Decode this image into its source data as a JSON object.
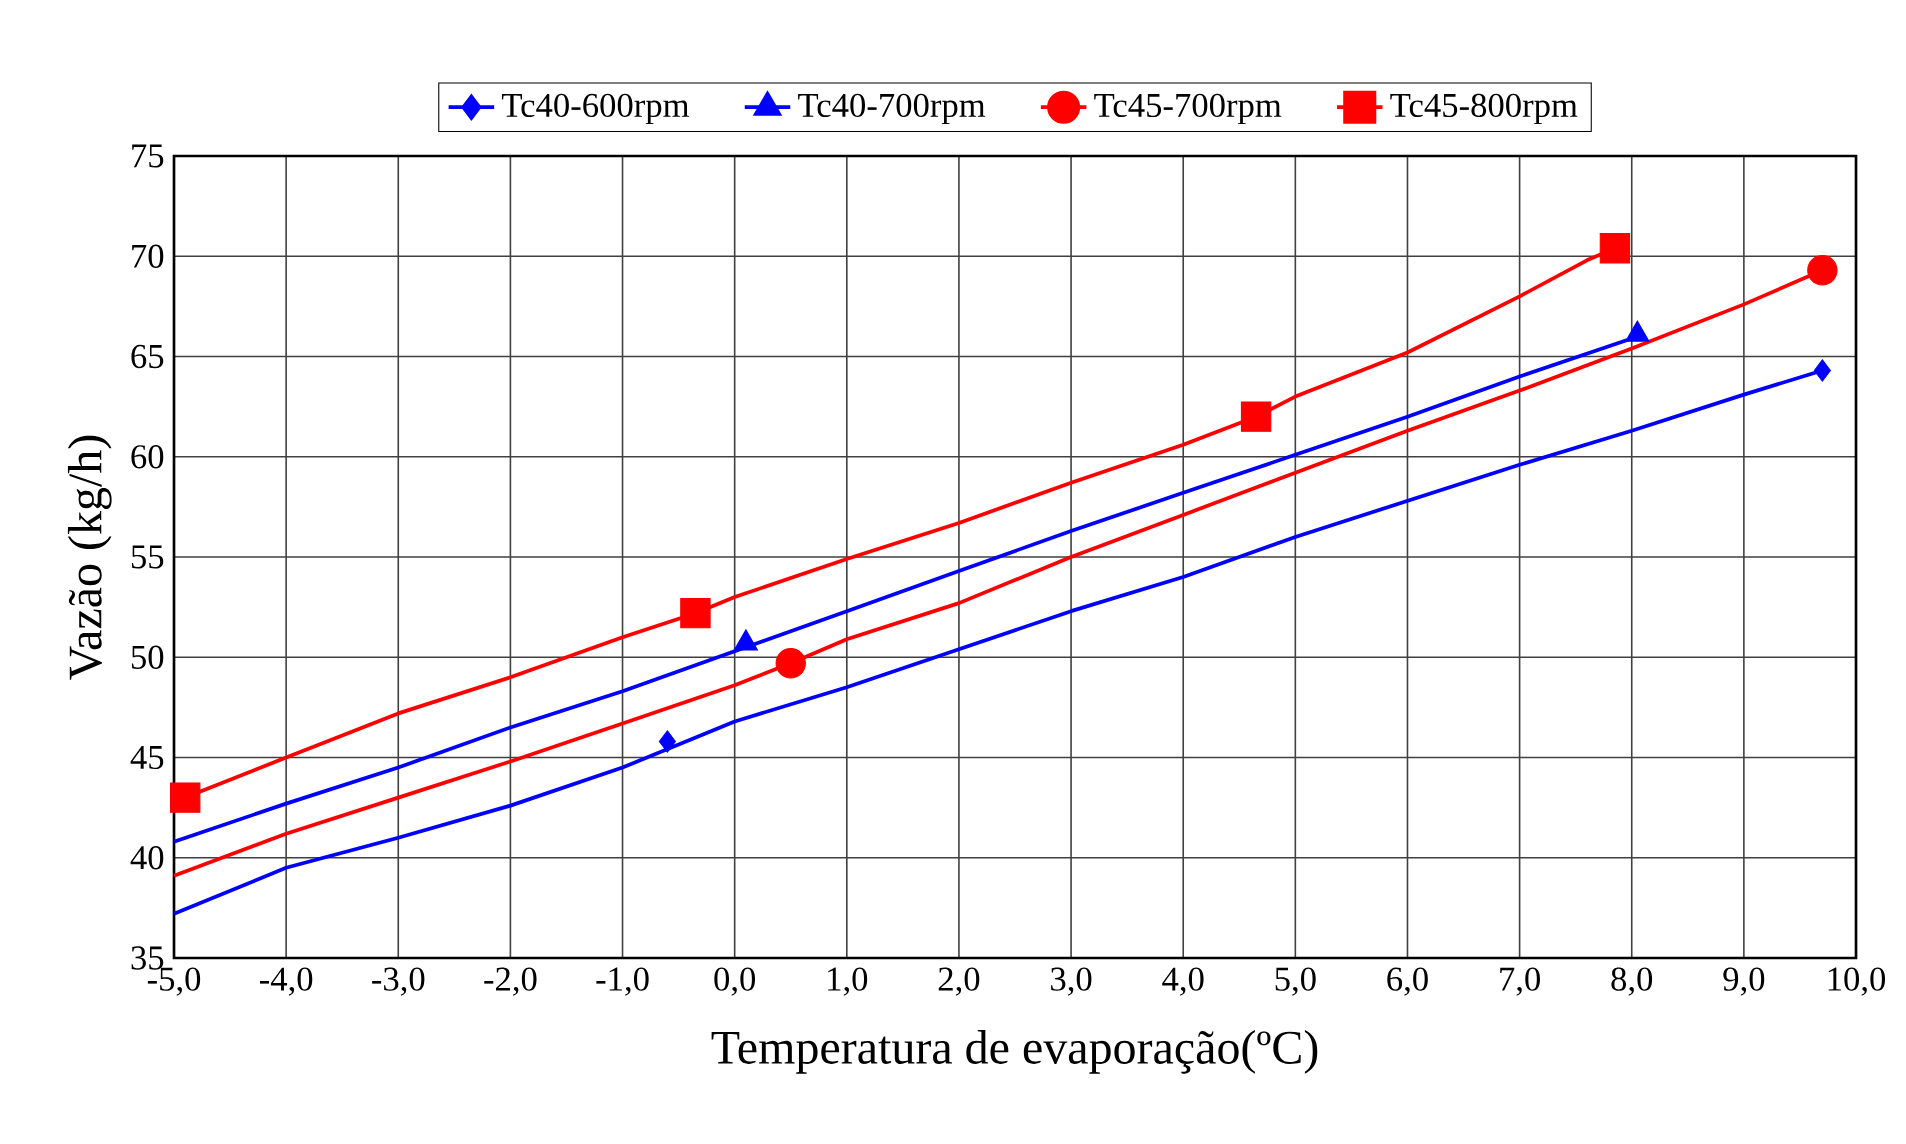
{
  "chart_data": {
    "type": "line",
    "xlabel": "Temperatura de evaporação(ºC)",
    "ylabel": "Vazão (kg/h)",
    "xlim": [
      -5,
      10
    ],
    "ylim": [
      35,
      75
    ],
    "xticks": [
      {
        "value": -5,
        "label": "-5,0"
      },
      {
        "value": -4,
        "label": "-4,0"
      },
      {
        "value": -3,
        "label": "-3,0"
      },
      {
        "value": -2,
        "label": "-2,0"
      },
      {
        "value": -1,
        "label": "-1,0"
      },
      {
        "value": 0,
        "label": "0,0"
      },
      {
        "value": 1,
        "label": "1,0"
      },
      {
        "value": 2,
        "label": "2,0"
      },
      {
        "value": 3,
        "label": "3,0"
      },
      {
        "value": 4,
        "label": "4,0"
      },
      {
        "value": 5,
        "label": "5,0"
      },
      {
        "value": 6,
        "label": "6,0"
      },
      {
        "value": 7,
        "label": "7,0"
      },
      {
        "value": 8,
        "label": "8,0"
      },
      {
        "value": 9,
        "label": "9,0"
      },
      {
        "value": 10,
        "label": "10,0"
      }
    ],
    "yticks": [
      35,
      40,
      45,
      50,
      55,
      60,
      65,
      70,
      75
    ],
    "grid": true,
    "legend": "top",
    "series": [
      {
        "color": "#0000ff",
        "x": [
          -5,
          -4,
          -3,
          -2,
          -1,
          0,
          1,
          2,
          3,
          4,
          5,
          6,
          7,
          8,
          9,
          9.7
        ],
        "values": [
          37.2,
          39.5,
          41,
          42.6,
          44.5,
          46.8,
          48.5,
          50.4,
          52.3,
          54,
          56,
          57.8,
          59.6,
          61.3,
          63.1,
          64.3
        ]
      },
      {
        "color": "#0000ff",
        "x": [
          -5,
          -4,
          -3,
          -2,
          -1,
          0,
          1,
          2,
          3,
          4,
          5,
          6,
          7,
          8,
          8.05
        ],
        "values": [
          40.8,
          42.7,
          44.5,
          46.5,
          48.3,
          50.3,
          52.3,
          54.3,
          56.3,
          58.2,
          60.1,
          62,
          64,
          65.9,
          66.1
        ]
      },
      {
        "color": "#ff0000",
        "x": [
          -5,
          -4,
          -3,
          -2,
          -1,
          0,
          0.5,
          1,
          2,
          3,
          4,
          5,
          6,
          7,
          8,
          9,
          9.7
        ],
        "values": [
          39.1,
          41.2,
          43,
          44.8,
          46.7,
          48.6,
          49.7,
          50.9,
          52.7,
          55,
          57.1,
          59.2,
          61.3,
          63.3,
          65.4,
          67.6,
          69.3
        ]
      },
      {
        "color": "#ff0000",
        "x": [
          -4.9,
          -4,
          -3,
          -2,
          -1,
          -0.35,
          0,
          1,
          2,
          3,
          4,
          4.65,
          5,
          6,
          7,
          7.6,
          7.85
        ],
        "values": [
          43,
          45,
          47.2,
          49,
          51,
          52.2,
          53,
          54.9,
          56.7,
          58.7,
          60.6,
          62,
          63,
          65.2,
          68,
          69.8,
          70.4
        ]
      },
      {
        "name": "Tc40-600rpm",
        "type": "scatter",
        "marker": "diamond",
        "color": "#0000ff",
        "x": [
          -0.6,
          9.7
        ],
        "values": [
          45.8,
          64.3
        ]
      },
      {
        "name": "Tc40-700rpm",
        "type": "scatter",
        "marker": "triangle",
        "color": "#0000ff",
        "x": [
          0.1,
          8.05
        ],
        "values": [
          50.7,
          66.1
        ]
      },
      {
        "name": "Tc45-700rpm",
        "type": "scatter",
        "marker": "circle",
        "color": "#ff0000",
        "x": [
          0.5,
          9.7
        ],
        "values": [
          49.7,
          69.3
        ]
      },
      {
        "name": "Tc45-800rpm",
        "type": "scatter",
        "marker": "square",
        "color": "#ff0000",
        "x": [
          -4.9,
          -0.35,
          4.65,
          7.85
        ],
        "values": [
          43,
          52.2,
          62,
          70.4
        ]
      }
    ]
  }
}
